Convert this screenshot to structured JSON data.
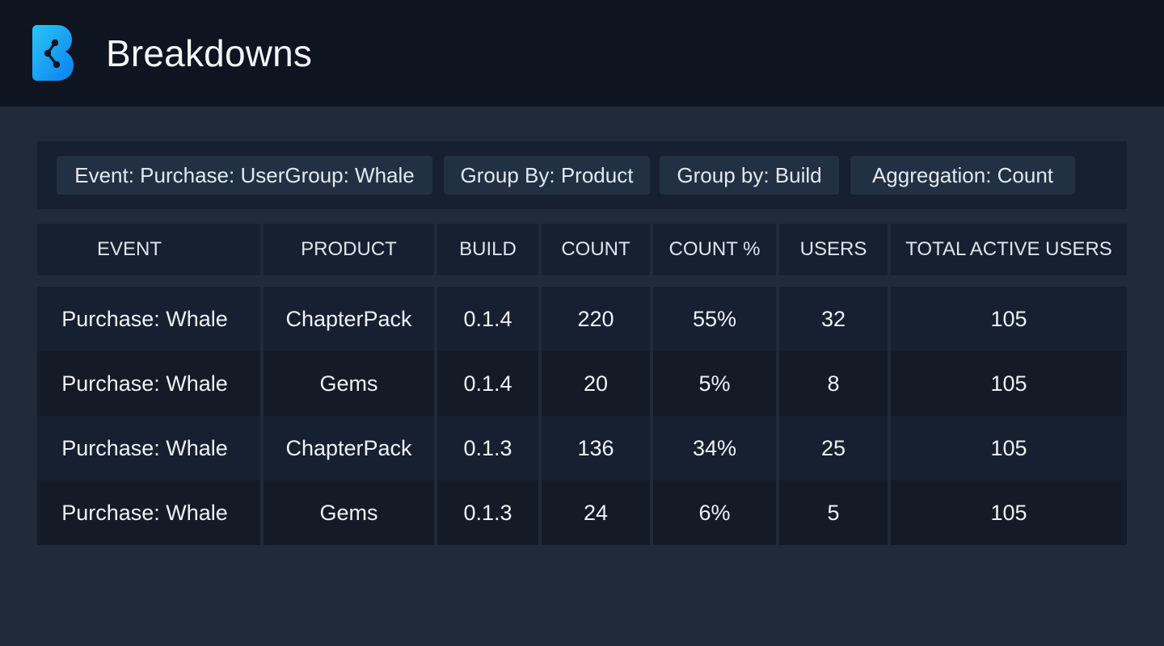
{
  "header": {
    "title": "Breakdowns",
    "logo_icon": "b-logo-icon",
    "logo_gradient": [
      "#2ac7f5",
      "#0a7ff0"
    ]
  },
  "filters": [
    {
      "label": "Event: Purchase: UserGroup: Whale"
    },
    {
      "label": "Group By: Product"
    },
    {
      "label": "Group by: Build"
    },
    {
      "label": "Aggregation: Count"
    }
  ],
  "table": {
    "columns": [
      "EVENT",
      "PRODUCT",
      "BUILD",
      "COUNT",
      "COUNT %",
      "USERS",
      "TOTAL ACTIVE USERS"
    ],
    "rows": [
      {
        "event": "Purchase: Whale",
        "product": "ChapterPack",
        "build": "0.1.4",
        "count": "220",
        "count_pct": "55%",
        "users": "32",
        "total_active_users": "105"
      },
      {
        "event": "Purchase: Whale",
        "product": "Gems",
        "build": "0.1.4",
        "count": "20",
        "count_pct": "5%",
        "users": "8",
        "total_active_users": "105"
      },
      {
        "event": "Purchase: Whale",
        "product": "ChapterPack",
        "build": "0.1.3",
        "count": "136",
        "count_pct": "34%",
        "users": "25",
        "total_active_users": "105"
      },
      {
        "event": "Purchase: Whale",
        "product": "Gems",
        "build": "0.1.3",
        "count": "24",
        "count_pct": "6%",
        "users": "5",
        "total_active_users": "105"
      }
    ]
  }
}
